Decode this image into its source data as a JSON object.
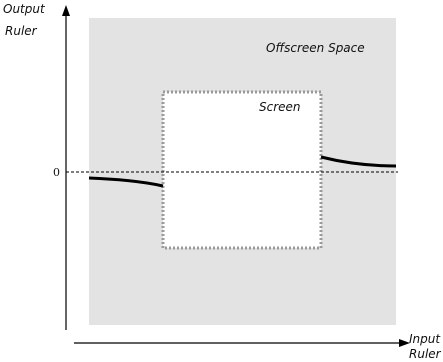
{
  "axes": {
    "y_label_line1": "Output",
    "y_label_line2": "Ruler",
    "x_label_line1": "Input",
    "x_label_line2": "Ruler",
    "zero_label": "0"
  },
  "regions": {
    "offscreen_label": "Offscreen Space",
    "screen_label": "Screen"
  },
  "colors": {
    "offscreen_fill": "#e3e3e3",
    "screen_fill": "#ffffff",
    "screen_border": "#9a9a9a",
    "curve": "#000000"
  }
}
